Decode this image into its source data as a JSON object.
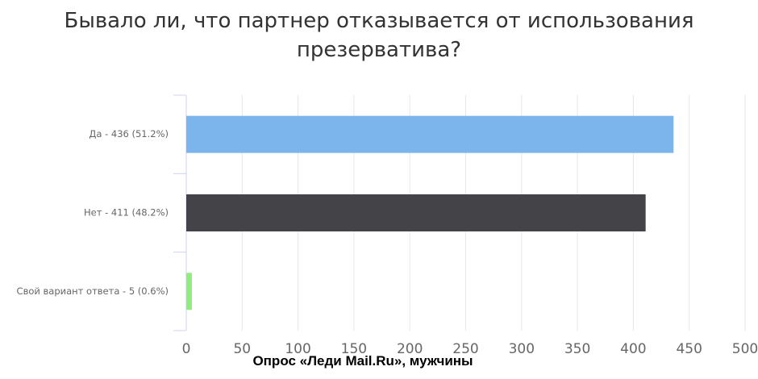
{
  "chart_data": {
    "type": "bar",
    "orientation": "horizontal",
    "title": "Бывало ли, что партнер отказывается от использования презерватива?",
    "categories": [
      "Да - 436 (51.2%)",
      "Нет - 411 (48.2%)",
      "Свой вариант ответа - 5 (0.6%)"
    ],
    "values": [
      436,
      411,
      5
    ],
    "colors": [
      "#7cb5ec",
      "#434348",
      "#90ed7d"
    ],
    "xlim": [
      0,
      500
    ],
    "xticks": [
      0,
      50,
      100,
      150,
      200,
      250,
      300,
      350,
      400,
      450,
      500
    ],
    "grid": true,
    "footer": "Опрос «Леди Mail.Ru», мужчины"
  }
}
